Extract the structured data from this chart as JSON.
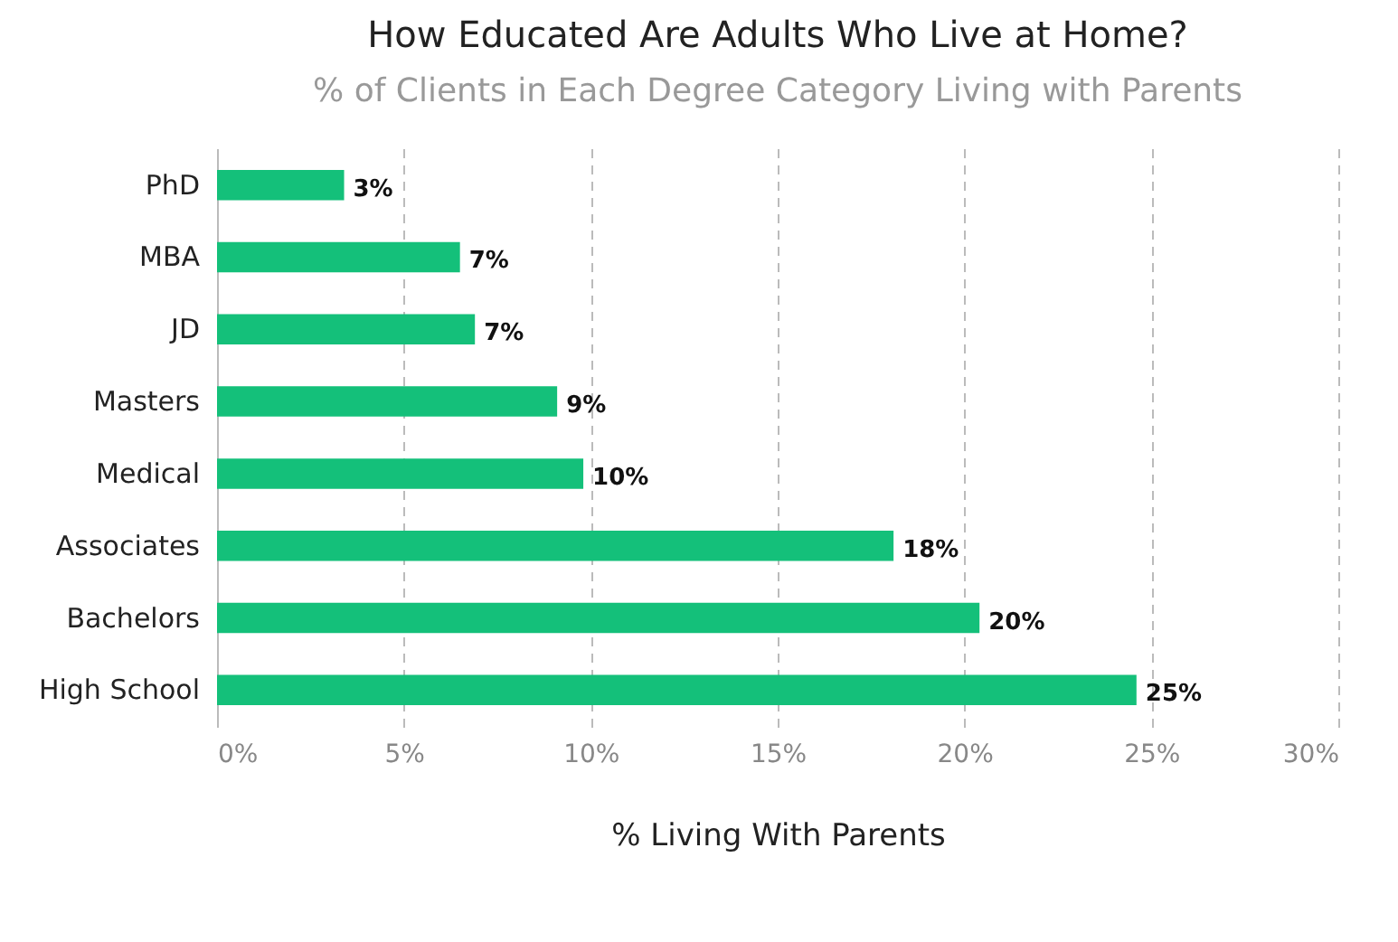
{
  "chart_data": {
    "type": "bar",
    "orientation": "horizontal",
    "title": "How Educated Are Adults Who Live at Home?",
    "subtitle": "% of Clients in Each Degree Category Living with Parents",
    "xlabel": "% Living With Parents",
    "categories": [
      "PhD",
      "MBA",
      "JD",
      "Masters",
      "Medical",
      "Associates",
      "Bachelors",
      "High School"
    ],
    "values": [
      3.4,
      6.5,
      6.9,
      9.1,
      9.8,
      18.1,
      20.4,
      24.6
    ],
    "value_labels": [
      "3%",
      "7%",
      "7%",
      "9%",
      "10%",
      "18%",
      "20%",
      "25%"
    ],
    "color": "#14c07a",
    "xlim": [
      0,
      30
    ],
    "xticks": [
      {
        "value": 0,
        "label": "0%"
      },
      {
        "value": 5,
        "label": "5%"
      },
      {
        "value": 10,
        "label": "10%"
      },
      {
        "value": 15,
        "label": "15%"
      },
      {
        "value": 20,
        "label": "20%"
      },
      {
        "value": 25,
        "label": "25%"
      },
      {
        "value": 30,
        "label": "30%"
      }
    ],
    "grid": "x"
  }
}
